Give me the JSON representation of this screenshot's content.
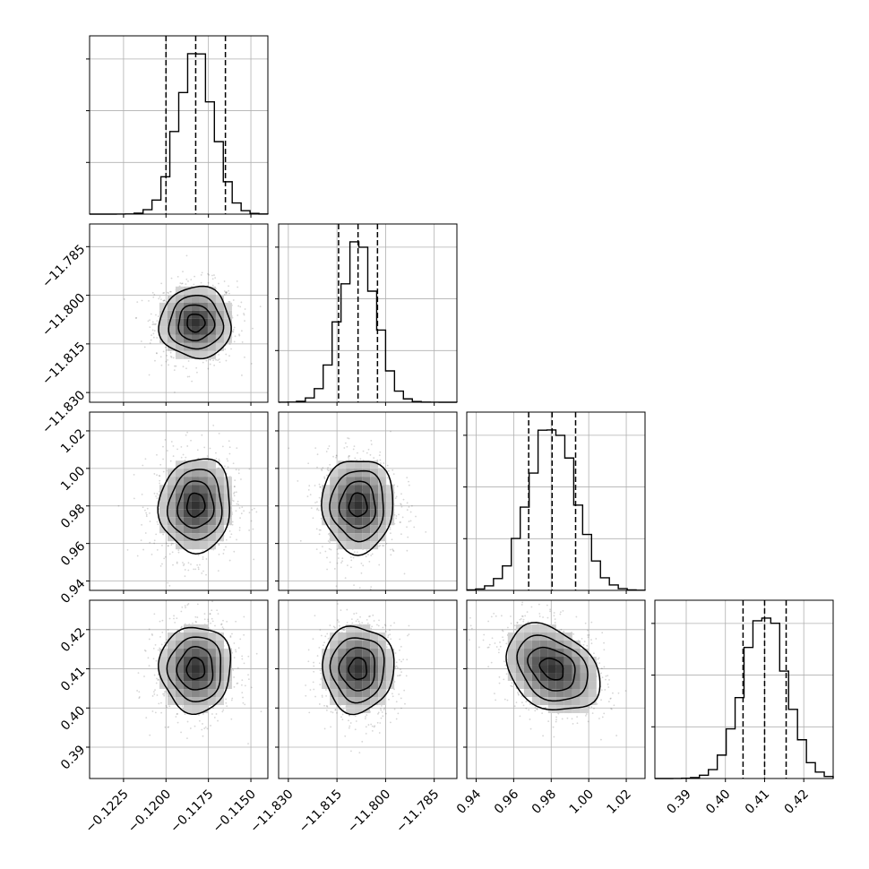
{
  "chart_data": {
    "type": "corner",
    "grid": true,
    "parameters": [
      {
        "range": [
          -0.1245,
          -0.114
        ],
        "mean": -0.11825,
        "std": 0.00105,
        "quantiles": [
          -0.12,
          -0.11825,
          -0.1165
        ],
        "ticks": [
          -0.1225,
          -0.12,
          -0.1175,
          -0.115
        ],
        "tick_labels": [
          "−0.1225",
          "−0.1200",
          "−0.1175",
          "−0.1150"
        ]
      },
      {
        "range": [
          -11.833,
          -11.778
        ],
        "mean": -11.8085,
        "std": 0.0055,
        "quantiles": [
          -11.8145,
          -11.8085,
          -11.8025
        ],
        "ticks": [
          -11.83,
          -11.815,
          -11.8,
          -11.785
        ],
        "tick_labels": [
          "−11.830",
          "−11.815",
          "−11.800",
          "−11.785"
        ]
      },
      {
        "range": [
          0.935,
          1.03
        ],
        "mean": 0.9805,
        "std": 0.0125,
        "quantiles": [
          0.968,
          0.9805,
          0.993
        ],
        "ticks": [
          0.94,
          0.96,
          0.98,
          1.0,
          1.02
        ],
        "tick_labels": [
          "0.94",
          "0.96",
          "0.98",
          "1.00",
          "1.02"
        ]
      },
      {
        "range": [
          0.382,
          0.4275
        ],
        "mean": 0.41,
        "std": 0.0055,
        "quantiles": [
          0.4045,
          0.41,
          0.4155
        ],
        "ticks": [
          0.39,
          0.4,
          0.41,
          0.42
        ],
        "tick_labels": [
          "0.39",
          "0.40",
          "0.41",
          "0.42"
        ]
      }
    ],
    "correlations": [
      {
        "pair": [
          0,
          1
        ],
        "rho": 0.0
      },
      {
        "pair": [
          0,
          2
        ],
        "rho": 0.05
      },
      {
        "pair": [
          1,
          2
        ],
        "rho": 0.0
      },
      {
        "pair": [
          0,
          3
        ],
        "rho": 0.0
      },
      {
        "pair": [
          1,
          3
        ],
        "rho": 0.0
      },
      {
        "pair": [
          2,
          3
        ],
        "rho": -0.3
      }
    ]
  }
}
